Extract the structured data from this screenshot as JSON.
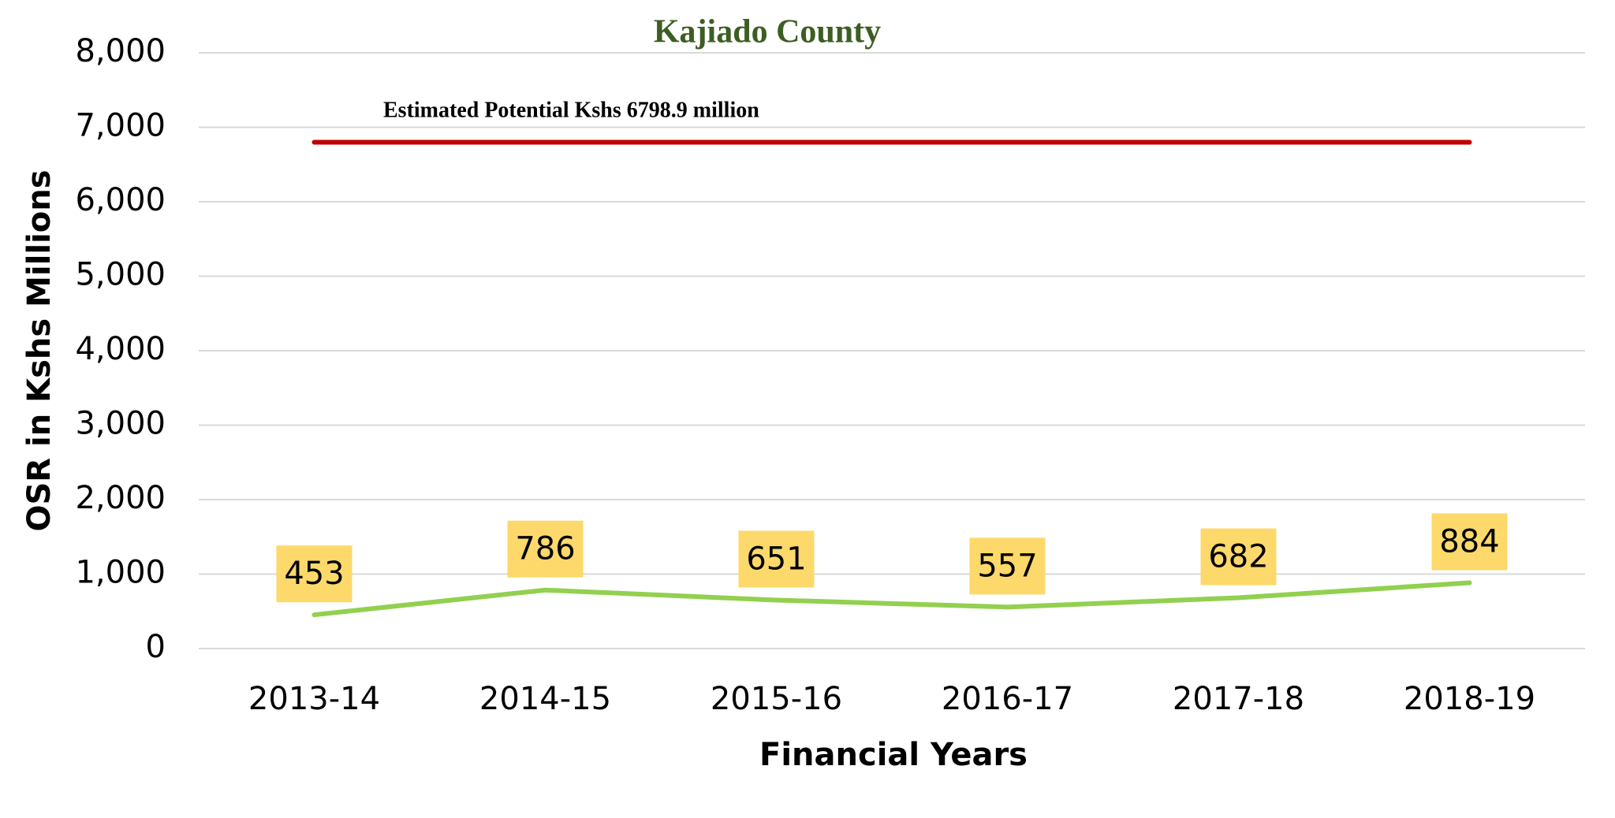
{
  "chart_data": {
    "type": "line",
    "title": "Kajiado County",
    "annotation": "Estimated Potential Kshs 6798.9 million",
    "x_label": "Financial Years",
    "y_label": "OSR in Kshs Millions",
    "categories": [
      "2013-14",
      "2014-15",
      "2015-16",
      "2016-17",
      "2017-18",
      "2018-19"
    ],
    "series": [
      {
        "color": "#92d050",
        "values": [
          453,
          786,
          651,
          557,
          682,
          884
        ],
        "data_labels": true,
        "label_color": "#fcd96a"
      },
      {
        "color": "#c00000",
        "values": [
          6798.9,
          6798.9,
          6798.9,
          6798.9,
          6798.9,
          6798.9
        ],
        "data_labels": false
      }
    ],
    "ylim": [
      0,
      8000
    ],
    "yticks": [
      0,
      {
        "value": 1000,
        "label": "1,000"
      },
      {
        "value": 2000,
        "label": "2,000"
      },
      {
        "value": 3000,
        "label": "3,000"
      },
      {
        "value": 4000,
        "label": "4,000"
      },
      {
        "value": 5000,
        "label": "5,000"
      },
      {
        "value": 6000,
        "label": "6,000"
      },
      {
        "value": 7000,
        "label": "7,000"
      },
      {
        "value": 8000,
        "label": "8,000"
      }
    ],
    "grid": true
  }
}
